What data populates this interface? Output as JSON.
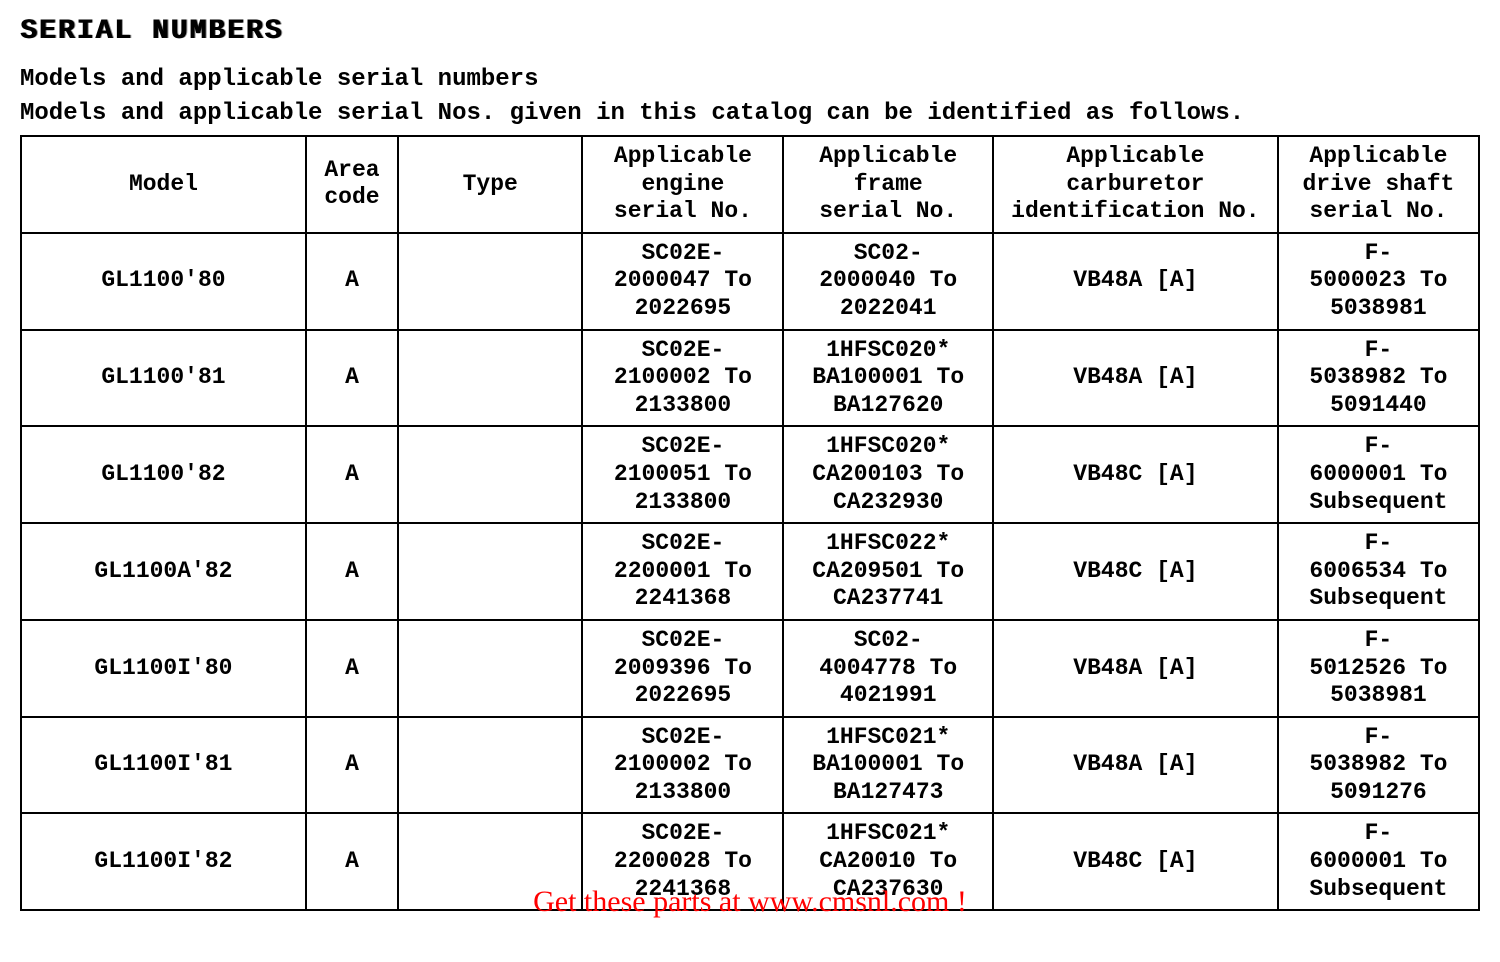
{
  "page": {
    "title": "SERIAL NUMBERS",
    "subtitle": "Models and applicable serial numbers",
    "description": "Models and applicable serial Nos. given in this catalog can be identified as follows.",
    "watermark_footer": "Get these parts at www.cmsnl.com !",
    "watermark_color": "#ff0000",
    "background_color": "#ffffff",
    "text_color": "#000000",
    "font_family": "Courier New"
  },
  "table": {
    "columns": [
      {
        "key": "model",
        "label": "Model",
        "width_pct": 17
      },
      {
        "key": "area",
        "label": "Area\ncode",
        "width_pct": 5.5
      },
      {
        "key": "type",
        "label": "Type",
        "width_pct": 11
      },
      {
        "key": "engine",
        "label": "Applicable\nengine\nserial No.",
        "width_pct": 12
      },
      {
        "key": "frame",
        "label": "Applicable\nframe\nserial No.",
        "width_pct": 12.5
      },
      {
        "key": "carb",
        "label": "Applicable\ncarburetor\nidentification No.",
        "width_pct": 17
      },
      {
        "key": "drive",
        "label": "Applicable\ndrive shaft\nserial No.",
        "width_pct": 12
      }
    ],
    "rows": [
      {
        "model": "GL1100'80",
        "area": "A",
        "type": "",
        "engine": "SC02E-\n2000047 To\n2022695",
        "frame": "SC02-\n2000040 To\n2022041",
        "carb": "VB48A [A]",
        "drive": "F-\n5000023 To\n5038981"
      },
      {
        "model": "GL1100'81",
        "area": "A",
        "type": "",
        "engine": "SC02E-\n2100002 To\n2133800",
        "frame": "1HFSC020*\nBA100001 To\nBA127620",
        "carb": "VB48A [A]",
        "drive": "F-\n5038982 To\n5091440"
      },
      {
        "model": "GL1100'82",
        "area": "A",
        "type": "",
        "engine": "SC02E-\n2100051 To\n2133800",
        "frame": "1HFSC020*\nCA200103 To\nCA232930",
        "carb": "VB48C [A]",
        "drive": "F-\n6000001 To\nSubsequent"
      },
      {
        "model": "GL1100A'82",
        "area": "A",
        "type": "",
        "engine": "SC02E-\n2200001 To\n2241368",
        "frame": "1HFSC022*\nCA209501 To\nCA237741",
        "carb": "VB48C [A]",
        "drive": "F-\n6006534 To\nSubsequent"
      },
      {
        "model": "GL1100I'80",
        "area": "A",
        "type": "",
        "engine": "SC02E-\n2009396 To\n2022695",
        "frame": "SC02-\n4004778 To\n4021991",
        "carb": "VB48A [A]",
        "drive": "F-\n5012526 To\n5038981"
      },
      {
        "model": "GL1100I'81",
        "area": "A",
        "type": "",
        "engine": "SC02E-\n2100002 To\n2133800",
        "frame": "1HFSC021*\nBA100001 To\nBA127473",
        "carb": "VB48A [A]",
        "drive": "F-\n5038982 To\n5091276"
      },
      {
        "model": "GL1100I'82",
        "area": "A",
        "type": "",
        "engine": "SC02E-\n2200028 To\n2241368",
        "frame": "1HFSC021*\nCA20010 To\nCA237630",
        "carb": "VB48C [A]",
        "drive": "F-\n6000001 To\nSubsequent"
      }
    ],
    "border_color": "#000000",
    "cell_fontsize": 23,
    "header_fontsize": 23
  }
}
